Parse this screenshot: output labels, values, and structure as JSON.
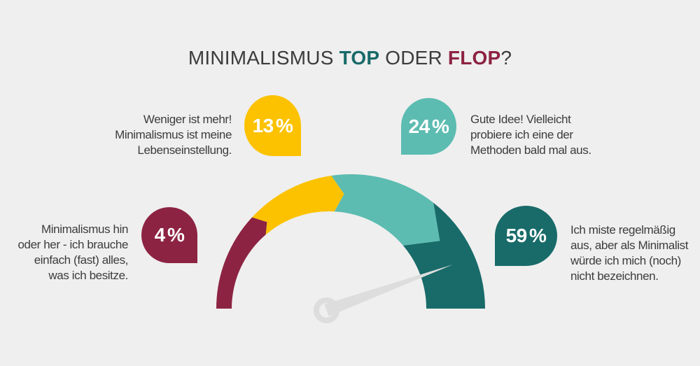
{
  "colors": {
    "background": "#efefef",
    "maroon": "#8d2342",
    "yellow": "#fcc200",
    "teal_light": "#5cbcb1",
    "teal_dark": "#186b69",
    "needle": "#dddddd",
    "text": "#3c3c3c",
    "bubble_text": "#ffffff"
  },
  "title": {
    "full": "MINIMALISMUS TOP ODER FLOP?",
    "parts": [
      {
        "name": "minimalismus",
        "text": "MINIMALISMUS",
        "prefix": "",
        "color_key": "text",
        "bold": false
      },
      {
        "name": "top",
        "text": "TOP",
        "prefix": " ",
        "color_key": "teal_dark",
        "bold": true
      },
      {
        "name": "oder",
        "text": "ODER",
        "prefix": " ",
        "color_key": "text",
        "bold": false
      },
      {
        "name": "flop",
        "text": "FLOP",
        "prefix": " ",
        "color_key": "maroon",
        "bold": true
      },
      {
        "name": "questionmark",
        "text": "?",
        "prefix": "",
        "color_key": "text",
        "bold": false
      }
    ]
  },
  "chart_data": {
    "type": "gauge",
    "title": "MINIMALISMUS TOP ODER FLOP?",
    "unit": "%",
    "segments": [
      {
        "value": 4,
        "color_key": "maroon",
        "label": "Minimalismus hin oder her - ich brauche einfach (fast) alles, was ich besitze."
      },
      {
        "value": 13,
        "color_key": "yellow",
        "label": "Weniger ist mehr! Minimalismus ist meine Lebenseinstellung."
      },
      {
        "value": 24,
        "color_key": "teal_light",
        "label": "Gute Idee! Vielleicht probiere ich eine der Methoden bald mal aus."
      },
      {
        "value": 59,
        "color_key": "teal_dark",
        "label": "Ich miste regelmäßig aus, aber als Minimalist würde ich mich (noch) nicht bezeichnen."
      }
    ],
    "gauge_geometry": {
      "outer_center": [
        501,
        441
      ],
      "outer_radius": 192,
      "inner_center": [
        470,
        441
      ],
      "inner_radius": 139,
      "boundaries": [
        {
          "angle": 180,
          "inner_angle": 180
        },
        {
          "angle": 137.2,
          "inner_angle": 130.5,
          "tip_angle": 134.0,
          "tip_radius": 172
        },
        {
          "angle": 98.3,
          "inner_angle": 86.8,
          "tip_angle": 93.3,
          "tip_radius": 164
        },
        {
          "angle": 52.0,
          "inner_angle": 40.4,
          "tip_angle": 37.2,
          "tip_radius": 160
        },
        {
          "angle": 0,
          "inner_angle": 0
        }
      ]
    },
    "needle": {
      "hub": [
        466.5,
        443.5
      ],
      "tip": [
        647,
        378
      ],
      "base_half_width": 9,
      "hub_outer_radius": 18.5,
      "hub_hole_radius": 10.5,
      "points_to_value": 59
    }
  },
  "callouts": [
    {
      "id": "13pct",
      "value": 13,
      "pct_label": "13 %",
      "color_key": "yellow",
      "tip": "bottom-right",
      "text": "Weniger ist mehr!\nMinimalismus ist meine\nLebenseinstellung."
    },
    {
      "id": "24pct",
      "value": 24,
      "pct_label": "24 %",
      "color_key": "teal_light",
      "tip": "bottom-left",
      "text": "Gute Idee! Vielleicht\nprobiere ich eine der\nMethoden bald mal aus."
    },
    {
      "id": "4pct",
      "value": 4,
      "pct_label": "4 %",
      "color_key": "maroon",
      "tip": "bottom-right",
      "text": "Minimalismus hin\noder her - ich brauche\neinfach (fast) alles,\nwas ich besitze."
    },
    {
      "id": "59pct",
      "value": 59,
      "pct_label": "59 %",
      "color_key": "teal_dark",
      "tip": "bottom-left",
      "text": "Ich miste regelmäßig\naus, aber als Minimalist\nwürde ich mich (noch)\nnicht bezeichnen."
    }
  ]
}
